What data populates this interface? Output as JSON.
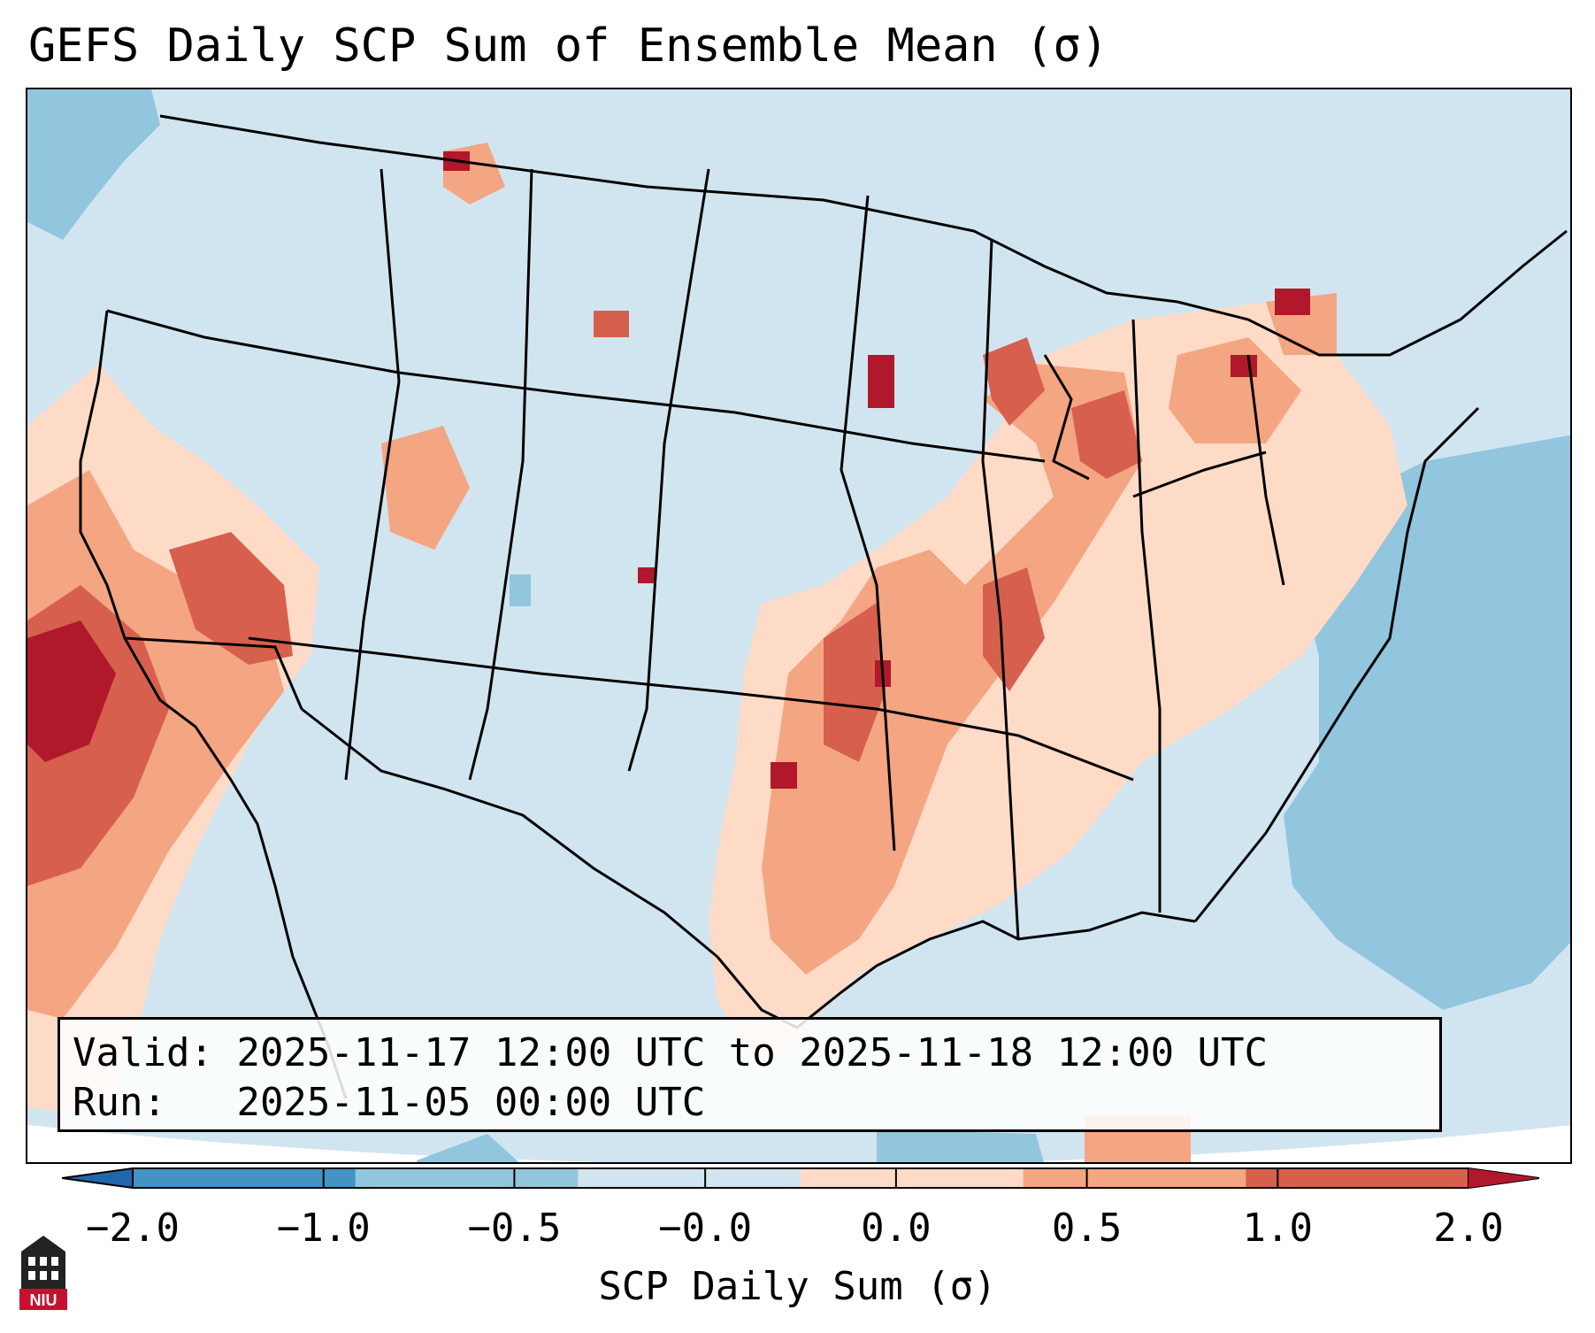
{
  "title": "GEFS Daily SCP Sum of Ensemble Mean (σ)",
  "colors": {
    "map_background": "#d1e5f0",
    "negative_light": "#92c5de",
    "negative_mid": "#4393c3",
    "negative_strong": "#2166ac",
    "positive_light": "#fddbc7",
    "positive_mid": "#f4a582",
    "positive_strong": "#d6604d",
    "positive_extreme": "#b2182b",
    "borders": "#000000"
  },
  "info": {
    "valid_label": "Valid:",
    "valid_value": "2025-11-17 12:00 UTC to 2025-11-18 12:00 UTC",
    "run_label": "Run:",
    "run_value": "2025-11-05 00:00 UTC"
  },
  "colorbar": {
    "label": "SCP Daily Sum (σ)",
    "ticks": [
      "−2.0",
      "−1.0",
      "−0.5",
      "−0.0",
      "0.0",
      "0.5",
      "1.0",
      "2.0"
    ],
    "segment_colors": [
      "#2166ac",
      "#4393c3",
      "#92c5de",
      "#d1e5f0",
      "#fddbc7",
      "#f4a582",
      "#d6604d",
      "#b2182b"
    ]
  },
  "logo": {
    "text": "NIU",
    "icon": "university-logo-icon"
  },
  "map": {
    "region": "Contiguous United States",
    "field": "SCP daily sum anomaly",
    "projection": "Lambert Conformal"
  }
}
